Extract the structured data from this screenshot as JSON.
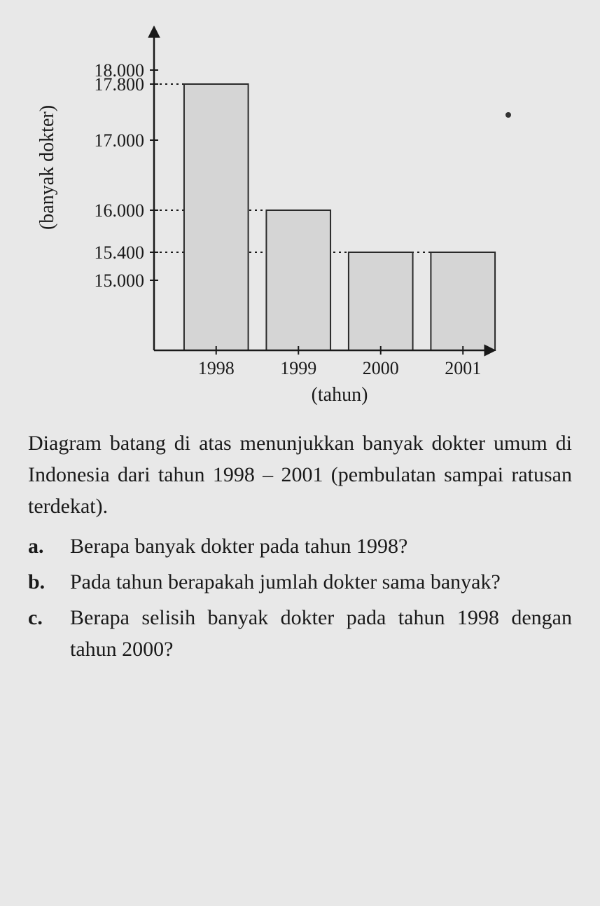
{
  "chart": {
    "type": "bar",
    "categories": [
      "1998",
      "1999",
      "2000",
      "2001"
    ],
    "values": [
      17800,
      16000,
      15400,
      15400
    ],
    "y_ticks": [
      15000,
      15400,
      16000,
      17000,
      17800,
      18000
    ],
    "y_tick_labels": [
      "15.000",
      "15.400",
      "16.000",
      "17.000",
      "17.800",
      "18.000"
    ],
    "y_min": 14000,
    "y_max": 18500,
    "gridlines_at": [
      15400,
      16000,
      17800
    ],
    "bar_fill": "#d5d5d5",
    "bar_stroke": "#2a2a2a",
    "axis_color": "#1a1a1a",
    "grid_color": "#1a1a1a",
    "background": "#e8e8e8",
    "y_label": "(banyak dokter)",
    "x_label": "(tahun)",
    "tick_fontsize": 26,
    "label_fontsize": 28,
    "bar_width_ratio": 0.78
  },
  "description": "Diagram batang di atas menunjukkan banyak dokter umum di Indonesia dari tahun 1998 – 2001 (pembulatan sampai ratusan terdekat).",
  "questions": {
    "a": {
      "letter": "a.",
      "text": "Berapa banyak dokter pada tahun 1998?"
    },
    "b": {
      "letter": "b.",
      "text": "Pada tahun berapakah jumlah dokter sama banyak?"
    },
    "c": {
      "letter": "c.",
      "text": "Berapa selisih banyak dokter pada tahun 1998 dengan tahun 2000?"
    }
  }
}
